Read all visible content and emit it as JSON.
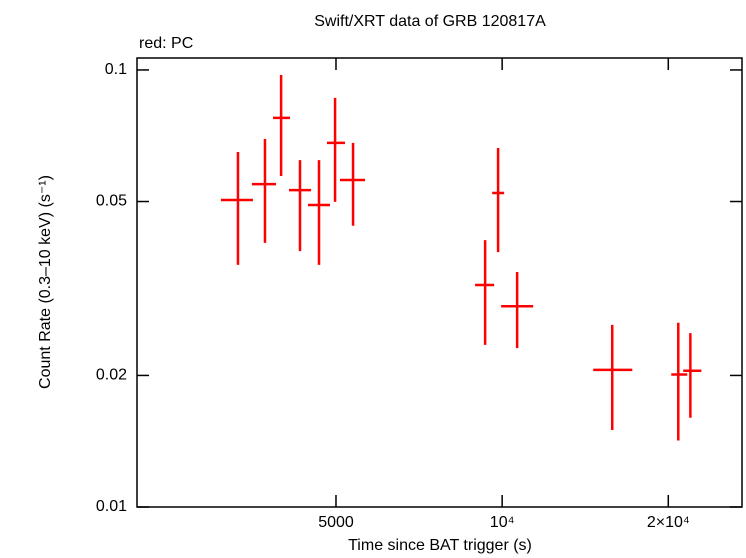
{
  "chart_data": {
    "type": "errorbar",
    "title": "Swift/XRT data of GRB 120817A",
    "annotation": "red: PC",
    "x_label": "Time since BAT trigger (s)",
    "y_label": "Count Rate (0.3–10 keV) (s⁻¹)",
    "x_log": true,
    "y_log": true,
    "xlim": [
      2180,
      27200
    ],
    "ylim": [
      0.01,
      0.1065
    ],
    "xticks": [
      5000,
      {
        "value": 10000,
        "label": "10⁴"
      },
      {
        "value": 20000,
        "label": "2×10⁴"
      }
    ],
    "yticks": [
      0.01,
      0.02,
      0.05,
      0.1
    ],
    "series": [
      {
        "color": "#ff0000",
        "x": [
          3322,
          3718,
          3977,
          4303,
          4658,
          4981,
          5369,
          9315,
          9833,
          10646,
          15830,
          20851,
          21930
        ],
        "x_low": [
          3094,
          3521,
          3845,
          4110,
          4449,
          4816,
          5085,
          8934,
          9592,
          9959,
          14622,
          20250,
          21287
        ],
        "x_high": [
          3536,
          3893,
          4127,
          4506,
          4877,
          5192,
          5644,
          9672,
          10083,
          11382,
          17211,
          21642,
          22955
        ],
        "values": [
          0.0504,
          0.0548,
          0.0777,
          0.0531,
          0.0491,
          0.0681,
          0.056,
          0.0322,
          0.0523,
          0.0288,
          0.0206,
          0.0201,
          0.0205
        ],
        "y_low": [
          0.0358,
          0.0402,
          0.0572,
          0.0385,
          0.0358,
          0.0499,
          0.044,
          0.0235,
          0.0383,
          0.0231,
          0.015,
          0.0142,
          0.016
        ],
        "y_high": [
          0.0649,
          0.0695,
          0.0974,
          0.0622,
          0.0622,
          0.0863,
          0.0681,
          0.0408,
          0.0663,
          0.0345,
          0.0261,
          0.0264,
          0.025
        ]
      }
    ]
  }
}
